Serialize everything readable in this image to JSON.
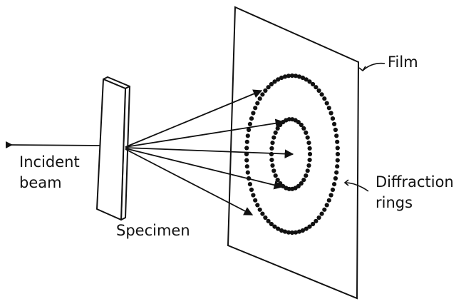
{
  "labels": {
    "film": "Film",
    "incident_line1": "Incident",
    "incident_line2": "beam",
    "specimen": "Specimen",
    "diffraction_line1": "Diffraction",
    "diffraction_line2": "rings"
  },
  "colors": {
    "ink": "#111111",
    "background": "#ffffff"
  }
}
